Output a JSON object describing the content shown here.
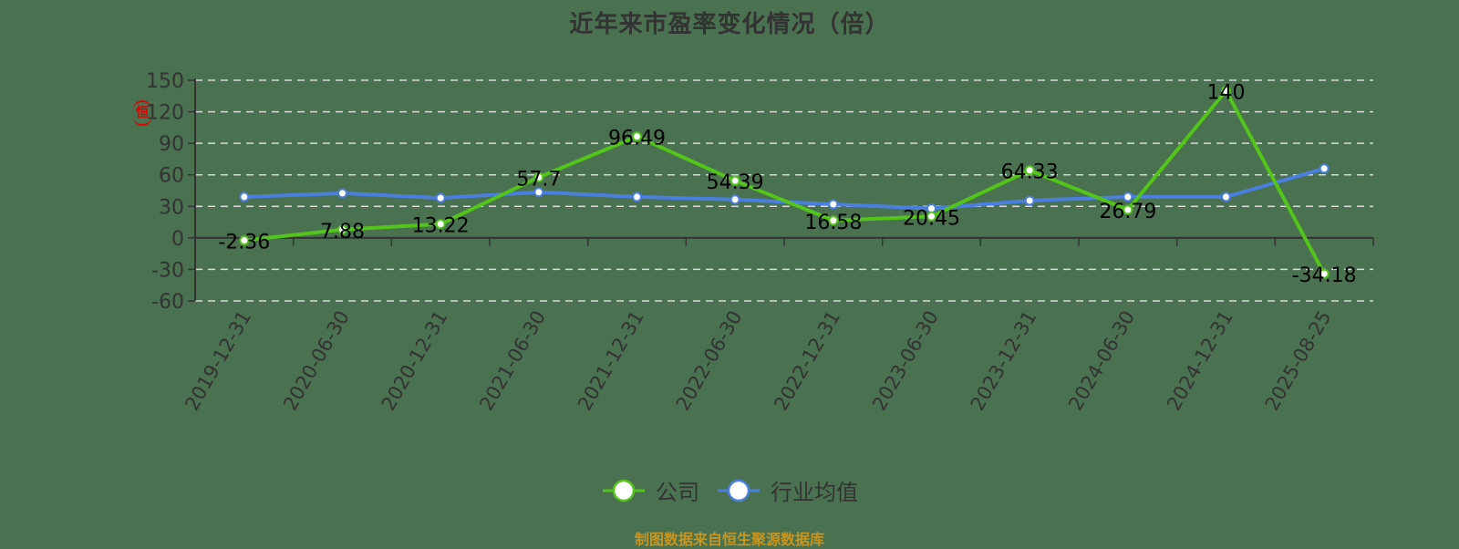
{
  "title": "近年来市盈率变化情况（倍）",
  "source_note": "制图数据来自恒生聚源数据库",
  "stamp_glyph": "恒",
  "colors": {
    "background": "#4a7150",
    "company": "#52c41a",
    "industry": "#4a7fe0",
    "grid": "#d9d9d9",
    "axis": "#333333",
    "source_text": "#c8951e"
  },
  "legend": [
    {
      "name": "公司",
      "color": "#52c41a"
    },
    {
      "name": "行业均值",
      "color": "#4a7fe0"
    }
  ],
  "chart_data": {
    "type": "line",
    "title": "近年来市盈率变化情况（倍）",
    "xlabel": "",
    "ylabel": "",
    "ylim": [
      -60,
      150
    ],
    "yticks": [
      150,
      120,
      90,
      60,
      30,
      0,
      -30,
      -60
    ],
    "grid": true,
    "legend_position": "bottom",
    "categories": [
      "2019-12-31",
      "2020-06-30",
      "2020-12-31",
      "2021-06-30",
      "2021-12-31",
      "2022-06-30",
      "2022-12-31",
      "2023-06-30",
      "2023-12-31",
      "2024-06-30",
      "2024-12-31",
      "2025-08-25"
    ],
    "series": [
      {
        "name": "公司",
        "values": [
          -2.36,
          7.88,
          13.22,
          57.7,
          96.49,
          54.39,
          16.58,
          20.45,
          64.33,
          26.79,
          140,
          -34.18
        ],
        "labels": [
          "-2.36",
          "7.88",
          "13.22",
          "57.7",
          "96.49",
          "54.39",
          "16.58",
          "20.45",
          "64.33",
          "26.79",
          "140",
          "-34.18"
        ]
      },
      {
        "name": "行业均值",
        "values": [
          39,
          42.5,
          38,
          43.5,
          39,
          36.5,
          32,
          28,
          35.5,
          39,
          39,
          66
        ]
      }
    ]
  }
}
